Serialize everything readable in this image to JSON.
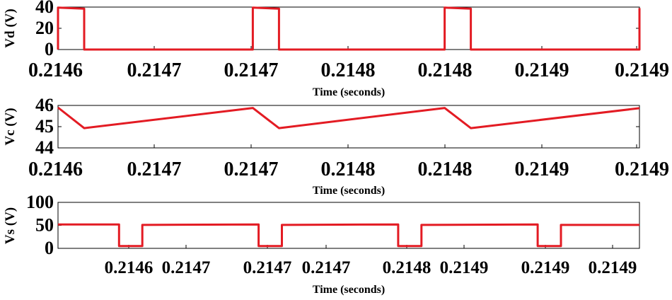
{
  "chart_data": [
    {
      "type": "line",
      "ylabel": "Vd (V)",
      "xlabel": "Time (seconds)",
      "ylim": [
        0,
        40
      ],
      "yticks": [
        "0",
        "20",
        "40"
      ],
      "xticks": [
        "0.2146",
        "0.2147",
        "0.2147",
        "0.2148",
        "0.2148",
        "0.2149",
        "0.2149"
      ],
      "xlim": [
        0,
        100
      ],
      "color": "#e31b23",
      "series": [
        {
          "x": [
            0,
            0,
            4.5,
            4.5,
            33.5,
            33.5,
            38,
            38,
            66.5,
            66.5,
            71,
            71,
            100,
            100
          ],
          "y": [
            0,
            39.5,
            38.5,
            0,
            0,
            39.5,
            38.5,
            0,
            0,
            39.5,
            38.5,
            0,
            0,
            39
          ]
        }
      ]
    },
    {
      "type": "line",
      "ylabel": "Vc (V)",
      "xlabel": "Time (seconds)",
      "ylim": [
        44,
        46
      ],
      "yticks": [
        "44",
        "45",
        "46"
      ],
      "xticks": [
        "0.2146",
        "0.2147",
        "0.2147",
        "0.2148",
        "0.2148",
        "0.2149",
        "0.2149"
      ],
      "xlim": [
        0,
        100
      ],
      "color": "#e31b23",
      "series": [
        {
          "x": [
            0,
            4.5,
            33.5,
            38,
            66.5,
            71,
            100
          ],
          "y": [
            45.9,
            44.93,
            45.88,
            44.93,
            45.88,
            44.93,
            45.87
          ]
        }
      ]
    },
    {
      "type": "line",
      "ylabel": "Vs (V)",
      "xlabel": "Time (seconds)",
      "ylim": [
        0,
        100
      ],
      "yticks": [
        "0",
        "50",
        "100"
      ],
      "xticks": [
        "0.2146",
        "0.2147",
        "0.2147",
        "0.2147",
        "0.2148",
        "0.2149",
        "0.2149",
        "0.2149"
      ],
      "xlim": [
        0,
        100
      ],
      "color": "#e31b23",
      "series": [
        {
          "x": [
            0,
            10.5,
            10.5,
            14.5,
            14.5,
            34.5,
            34.5,
            38.5,
            38.5,
            58.5,
            58.5,
            62.5,
            62.5,
            82.5,
            82.5,
            86.5,
            86.5,
            100
          ],
          "y": [
            52,
            52,
            5,
            5,
            51,
            52,
            5,
            5,
            51,
            52,
            5,
            5,
            51,
            52,
            5,
            5,
            51,
            51
          ]
        }
      ]
    }
  ]
}
